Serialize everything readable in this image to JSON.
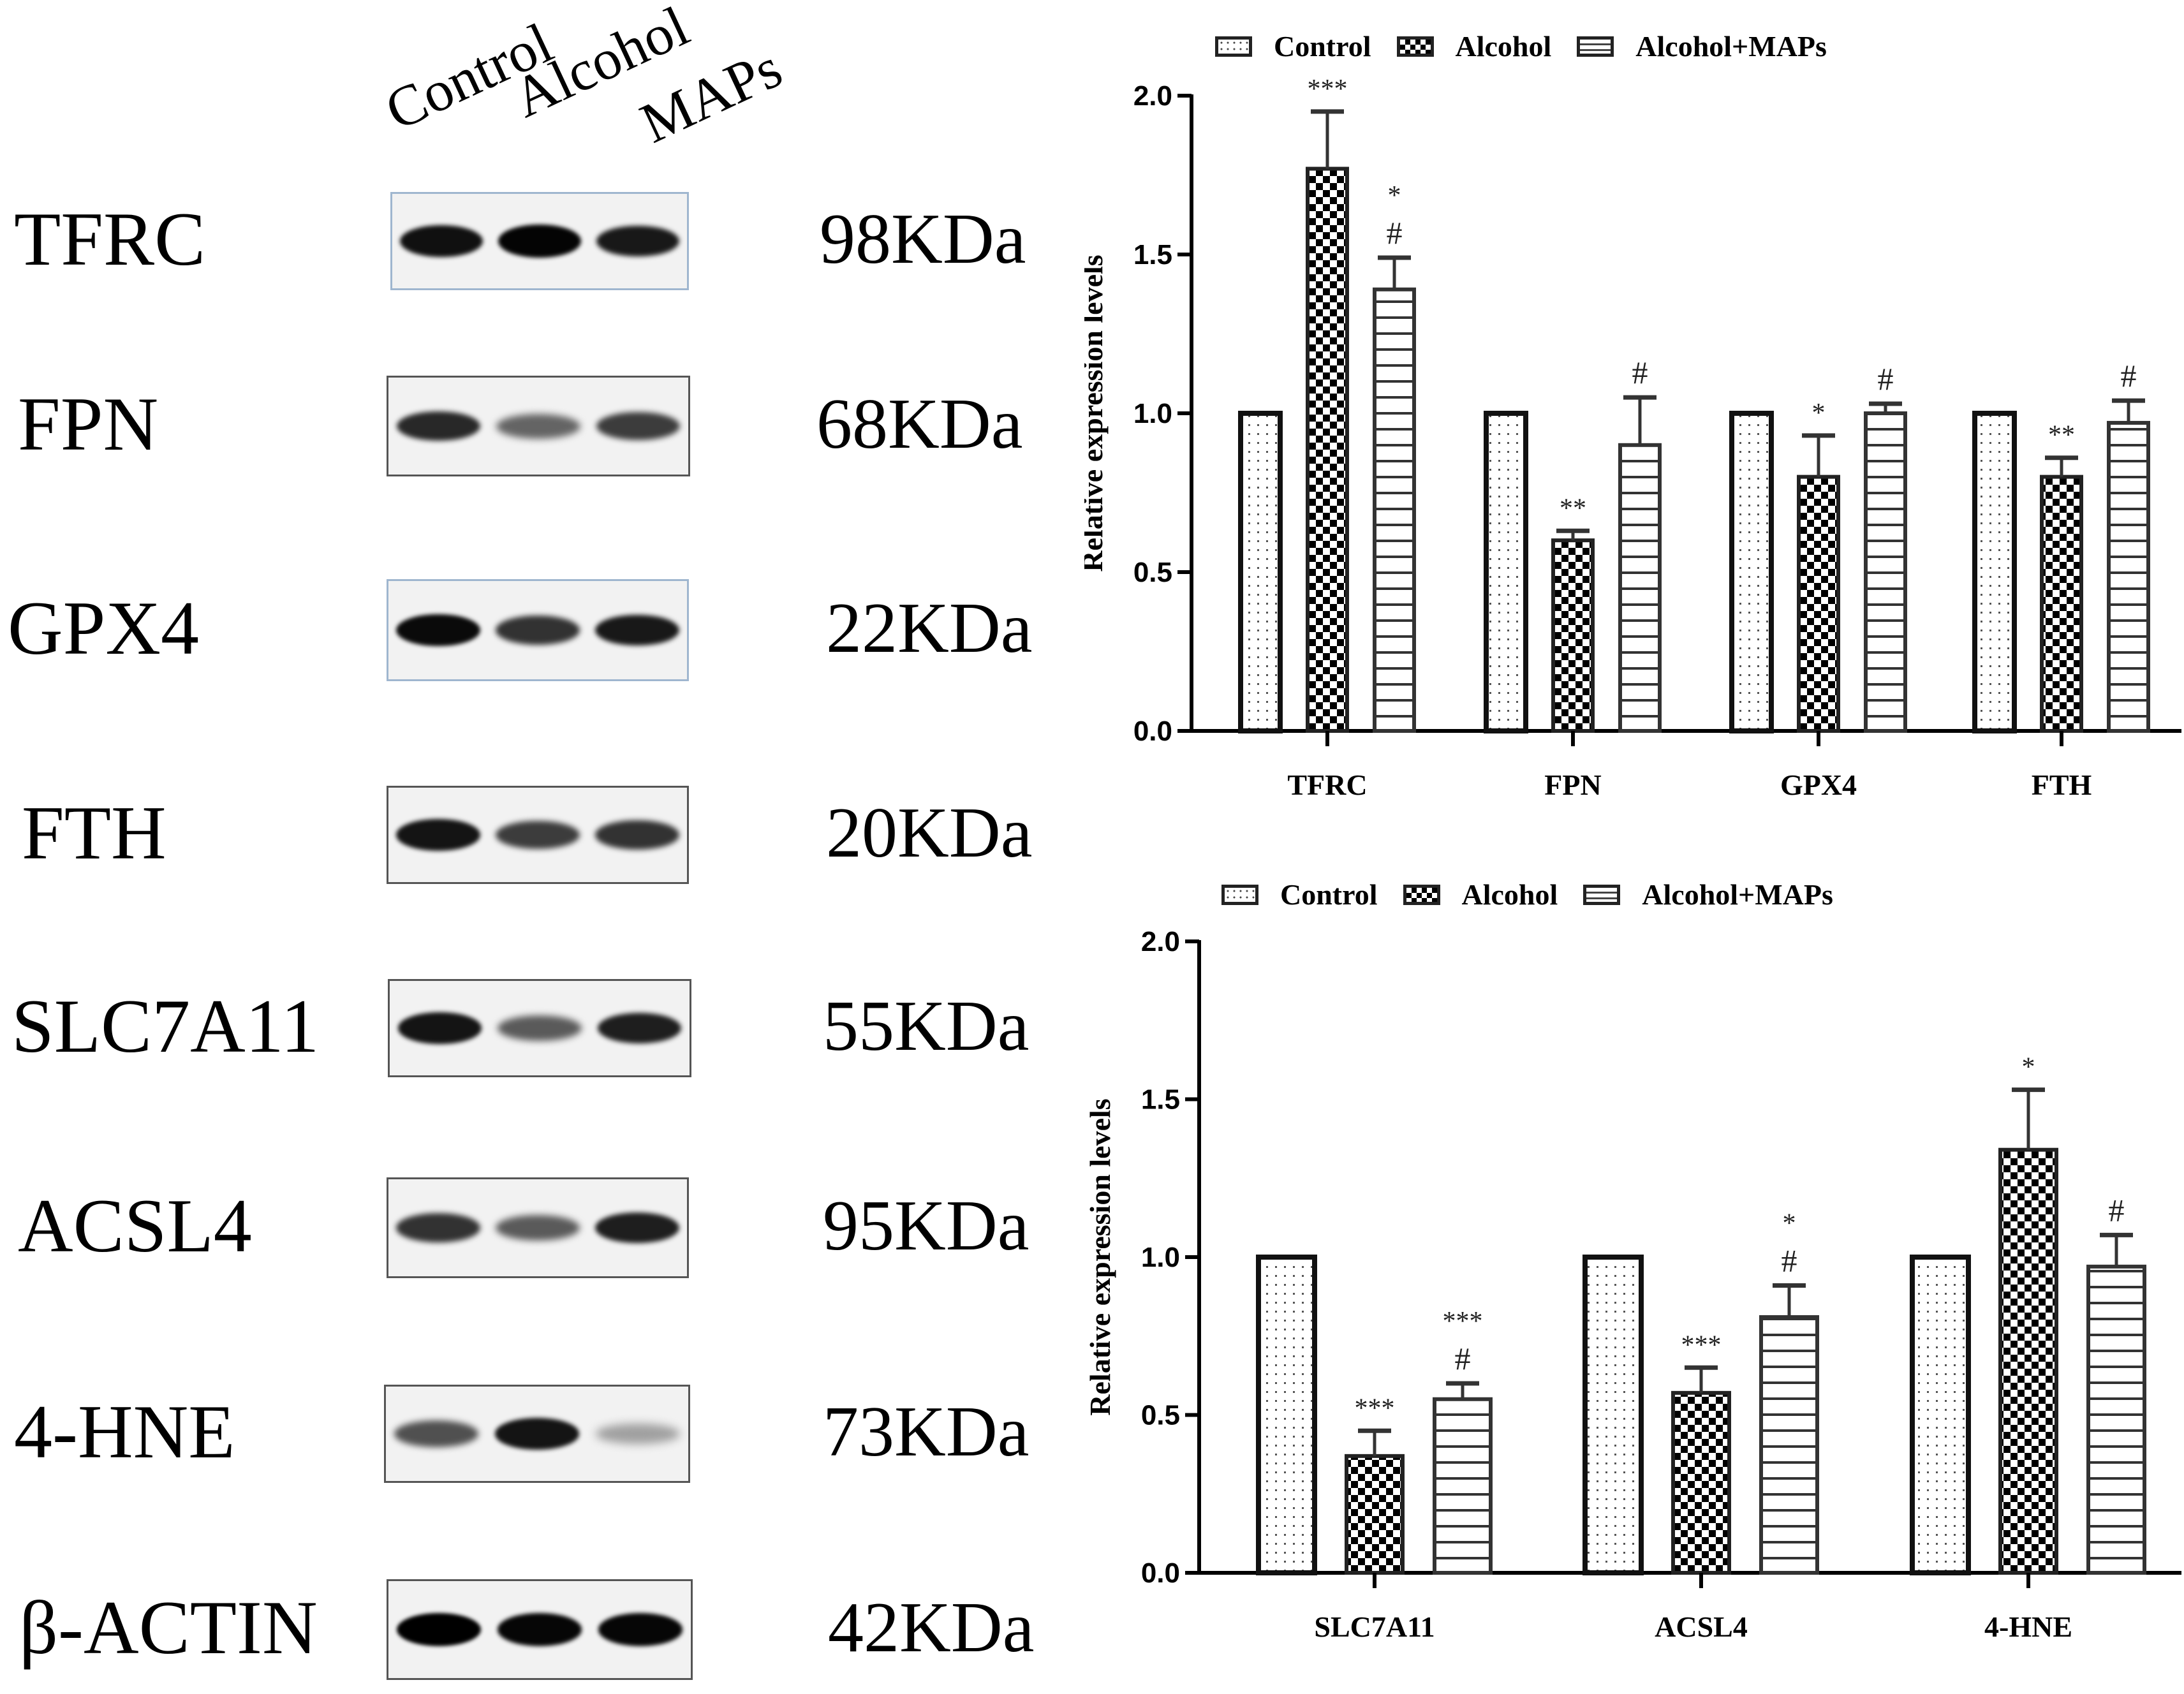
{
  "blot_panel": {
    "lane_labels": [
      "Control",
      "Alcohol",
      "MAPs"
    ],
    "rows": [
      {
        "protein": "TFRC",
        "kda": "98KDa",
        "intensity": [
          0.92,
          0.98,
          0.88
        ]
      },
      {
        "protein": "FPN",
        "kda": "68KDa",
        "intensity": [
          0.8,
          0.5,
          0.7
        ]
      },
      {
        "protein": "GPX4",
        "kda": "22KDa",
        "intensity": [
          0.95,
          0.75,
          0.88
        ]
      },
      {
        "protein": "FTH",
        "kda": "20KDa",
        "intensity": [
          0.9,
          0.7,
          0.75
        ]
      },
      {
        "protein": "SLC7A11",
        "kda": "55KDa",
        "intensity": [
          0.9,
          0.55,
          0.85
        ]
      },
      {
        "protein": "ACSL4",
        "kda": "95KDa",
        "intensity": [
          0.75,
          0.55,
          0.85
        ]
      },
      {
        "protein": "4-HNE",
        "kda": "73KDa",
        "intensity": [
          0.6,
          0.9,
          0.2
        ]
      },
      {
        "protein": "β-ACTIN",
        "kda": "42KDa",
        "intensity": [
          1.0,
          0.97,
          0.97
        ]
      }
    ]
  },
  "legend": {
    "control": "Control",
    "alcohol": "Alcohol",
    "maps": "Alcohol+MAPs"
  },
  "colors": {
    "axis": "#000000",
    "bar_outline": "#333333",
    "background": "#ffffff"
  },
  "chart_data": [
    {
      "type": "bar",
      "title": "",
      "xlabel": "",
      "ylabel": "Relative expression levels",
      "ylim": [
        0,
        2.0
      ],
      "yticks": [
        "0.0",
        "0.5",
        "1.0",
        "1.5",
        "2.0"
      ],
      "grid": false,
      "legend_position": "top",
      "categories": [
        "TFRC",
        "FPN",
        "GPX4",
        "FTH"
      ],
      "series": [
        {
          "name": "Control",
          "pattern": "dots",
          "values": [
            1.0,
            1.0,
            1.0,
            1.0
          ],
          "error": [
            0,
            0,
            0,
            0
          ],
          "annotations": [
            "",
            "",
            "",
            ""
          ]
        },
        {
          "name": "Alcohol",
          "pattern": "checker",
          "values": [
            1.77,
            0.6,
            0.8,
            0.8
          ],
          "error": [
            0.18,
            0.03,
            0.13,
            0.06
          ],
          "annotations": [
            "***",
            "**",
            "*",
            "**"
          ]
        },
        {
          "name": "Alcohol+MAPs",
          "pattern": "hlines",
          "values": [
            1.39,
            0.9,
            1.0,
            0.97
          ],
          "error": [
            0.1,
            0.15,
            0.03,
            0.07
          ],
          "annotations": [
            "*\n#",
            "#",
            "#",
            "#"
          ]
        }
      ]
    },
    {
      "type": "bar",
      "title": "",
      "xlabel": "",
      "ylabel": "Relative expression levels",
      "ylim": [
        0,
        2.0
      ],
      "yticks": [
        "0.0",
        "0.5",
        "1.0",
        "1.5",
        "2.0"
      ],
      "grid": false,
      "legend_position": "top",
      "categories": [
        "SLC7A11",
        "ACSL4",
        "4-HNE"
      ],
      "series": [
        {
          "name": "Control",
          "pattern": "dots",
          "values": [
            1.0,
            1.0,
            1.0
          ],
          "error": [
            0,
            0,
            0
          ],
          "annotations": [
            "",
            "",
            ""
          ]
        },
        {
          "name": "Alcohol",
          "pattern": "checker",
          "values": [
            0.37,
            0.57,
            1.34
          ],
          "error": [
            0.08,
            0.08,
            0.19
          ],
          "annotations": [
            "***",
            "***",
            "*"
          ]
        },
        {
          "name": "Alcohol+MAPs",
          "pattern": "hlines",
          "values": [
            0.55,
            0.81,
            0.97
          ],
          "error": [
            0.05,
            0.1,
            0.1
          ],
          "annotations": [
            "***\n#",
            "*\n#",
            "#"
          ]
        }
      ]
    }
  ]
}
